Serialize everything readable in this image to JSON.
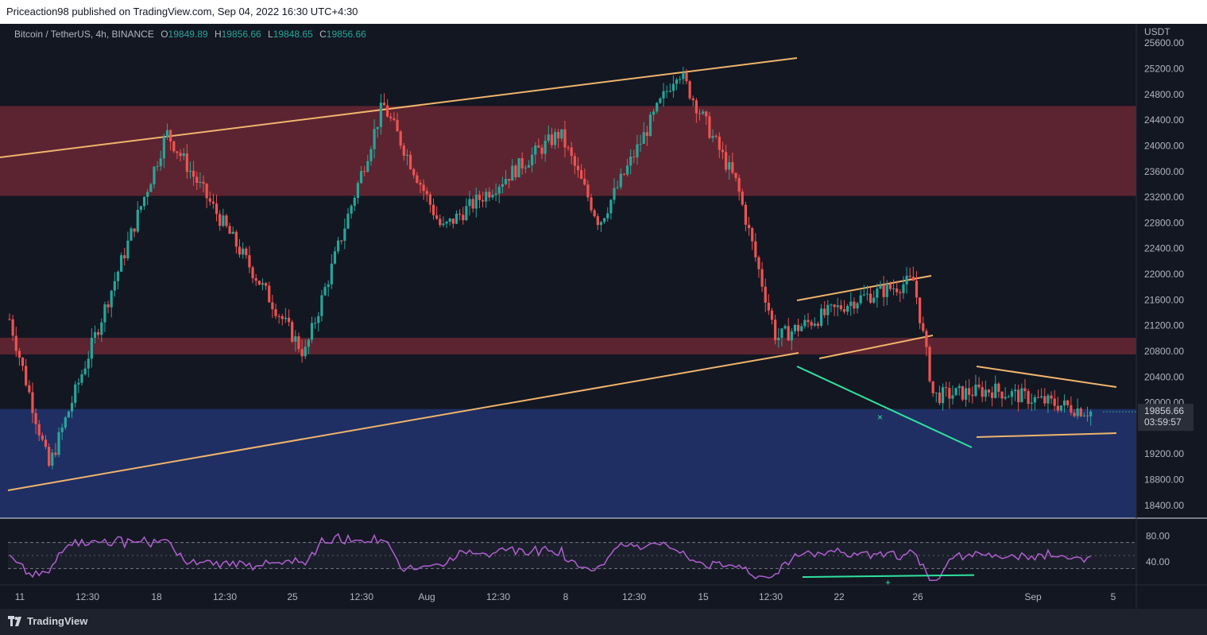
{
  "header": {
    "published_text": "Priceaction98 published on TradingView.com, Sep 04, 2022 16:30 UTC+4:30"
  },
  "legend": {
    "symbol": "Bitcoin / TetherUS, 4h, BINANCE",
    "open_label": "O",
    "open": "19849.89",
    "high_label": "H",
    "high": "19856.66",
    "low_label": "L",
    "low": "19848.65",
    "close_label": "C",
    "close": "19856.66"
  },
  "price_axis": {
    "currency": "USDT",
    "ticks": [
      "25600.00",
      "25200.00",
      "24800.00",
      "24400.00",
      "24000.00",
      "23600.00",
      "23200.00",
      "22800.00",
      "22400.00",
      "22000.00",
      "21600.00",
      "21200.00",
      "20800.00",
      "20400.00",
      "20000.00",
      "19200.00",
      "18800.00",
      "18400.00"
    ],
    "last_price": "19856.66",
    "countdown": "03:59:57"
  },
  "rsi_axis": {
    "ticks": [
      "80.00",
      "40.00"
    ]
  },
  "time_axis": {
    "ticks": [
      "11",
      "12:30",
      "18",
      "12:30",
      "25",
      "12:30",
      "Aug",
      "12:30",
      "8",
      "12:30",
      "15",
      "12:30",
      "22",
      "26",
      "Sep",
      "5"
    ]
  },
  "footer": {
    "brand": "TradingView"
  },
  "colors": {
    "background": "#131722",
    "up": "#26a69a",
    "down": "#ef5350",
    "resistance_zone": "#5c2430",
    "support_zone": "#1f2f63",
    "trendline": "#f0b46c",
    "divergence": "#2ee3a0",
    "rsi": "#b05fd1"
  },
  "chart_data": {
    "type": "candlestick",
    "timeframe": "4h",
    "price_range": [
      18200,
      25900
    ],
    "zones": [
      {
        "kind": "resistance",
        "from": 23220,
        "to": 24620
      },
      {
        "kind": "resistance",
        "from": 20750,
        "to": 21010
      },
      {
        "kind": "support",
        "from": 18200,
        "to": 19900
      }
    ],
    "key_points": [
      {
        "date": "Jul 11",
        "price": 21300
      },
      {
        "date": "Jul 13",
        "price": 19000
      },
      {
        "date": "Jul 19",
        "price": 24200
      },
      {
        "date": "Jul 26",
        "price": 20750
      },
      {
        "date": "Jul 30",
        "price": 24650
      },
      {
        "date": "Aug 02",
        "price": 22700
      },
      {
        "date": "Aug 08",
        "price": 24200
      },
      {
        "date": "Aug 10",
        "price": 22800
      },
      {
        "date": "Aug 14",
        "price": 25200
      },
      {
        "date": "Aug 17",
        "price": 23400
      },
      {
        "date": "Aug 19",
        "price": 21000
      },
      {
        "date": "Aug 23",
        "price": 21600
      },
      {
        "date": "Aug 26",
        "price": 21900
      },
      {
        "date": "Aug 27",
        "price": 20100
      },
      {
        "date": "Aug 30",
        "price": 20200
      },
      {
        "date": "Sep 04",
        "price": 19856.66
      }
    ],
    "rsi_range": [
      0,
      100
    ],
    "rsi_levels": [
      70,
      30
    ]
  }
}
